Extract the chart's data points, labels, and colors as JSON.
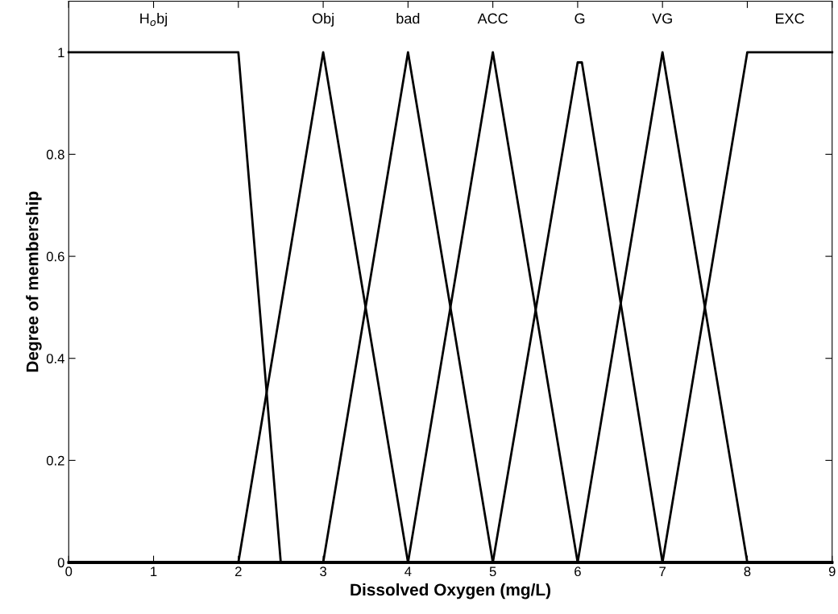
{
  "chart_data": {
    "type": "line",
    "xlabel": "Dissolved Oxygen (mg/L)",
    "ylabel": "Degree of membership",
    "xlim": [
      0,
      9
    ],
    "ylim": [
      0,
      1.1
    ],
    "xticks": [
      0,
      1,
      2,
      3,
      4,
      5,
      6,
      7,
      8,
      9
    ],
    "yticks": [
      0,
      0.2,
      0.4,
      0.6,
      0.8,
      1
    ],
    "grid": false,
    "legend": "top",
    "marker": "none",
    "line_style": "solid",
    "series": [
      {
        "name": "H$_{o}$bj",
        "color": "#000000",
        "x": [
          0,
          2,
          2.5,
          9
        ],
        "values": [
          1,
          1,
          0,
          0
        ]
      },
      {
        "name": "Obj",
        "color": "#000000",
        "x": [
          0,
          2,
          3,
          4,
          9
        ],
        "values": [
          0,
          0,
          1,
          0,
          0
        ]
      },
      {
        "name": "bad",
        "color": "#000000",
        "x": [
          0,
          3,
          4,
          5,
          9
        ],
        "values": [
          0,
          0,
          1,
          0,
          0
        ]
      },
      {
        "name": "ACC",
        "color": "#000000",
        "x": [
          0,
          4,
          5,
          6,
          9
        ],
        "values": [
          0,
          0,
          1,
          0,
          0
        ]
      },
      {
        "name": "G",
        "color": "#000000",
        "x": [
          0,
          5,
          6,
          6.05,
          7,
          9
        ],
        "values": [
          0,
          0,
          0.98,
          0.98,
          0,
          0
        ]
      },
      {
        "name": "VG",
        "color": "#000000",
        "x": [
          0,
          6,
          7,
          8,
          9
        ],
        "values": [
          0,
          0,
          1,
          0,
          0
        ]
      },
      {
        "name": "EXC",
        "color": "#000000",
        "x": [
          0,
          7,
          8,
          9
        ],
        "values": [
          0,
          0,
          1,
          1
        ]
      }
    ]
  }
}
